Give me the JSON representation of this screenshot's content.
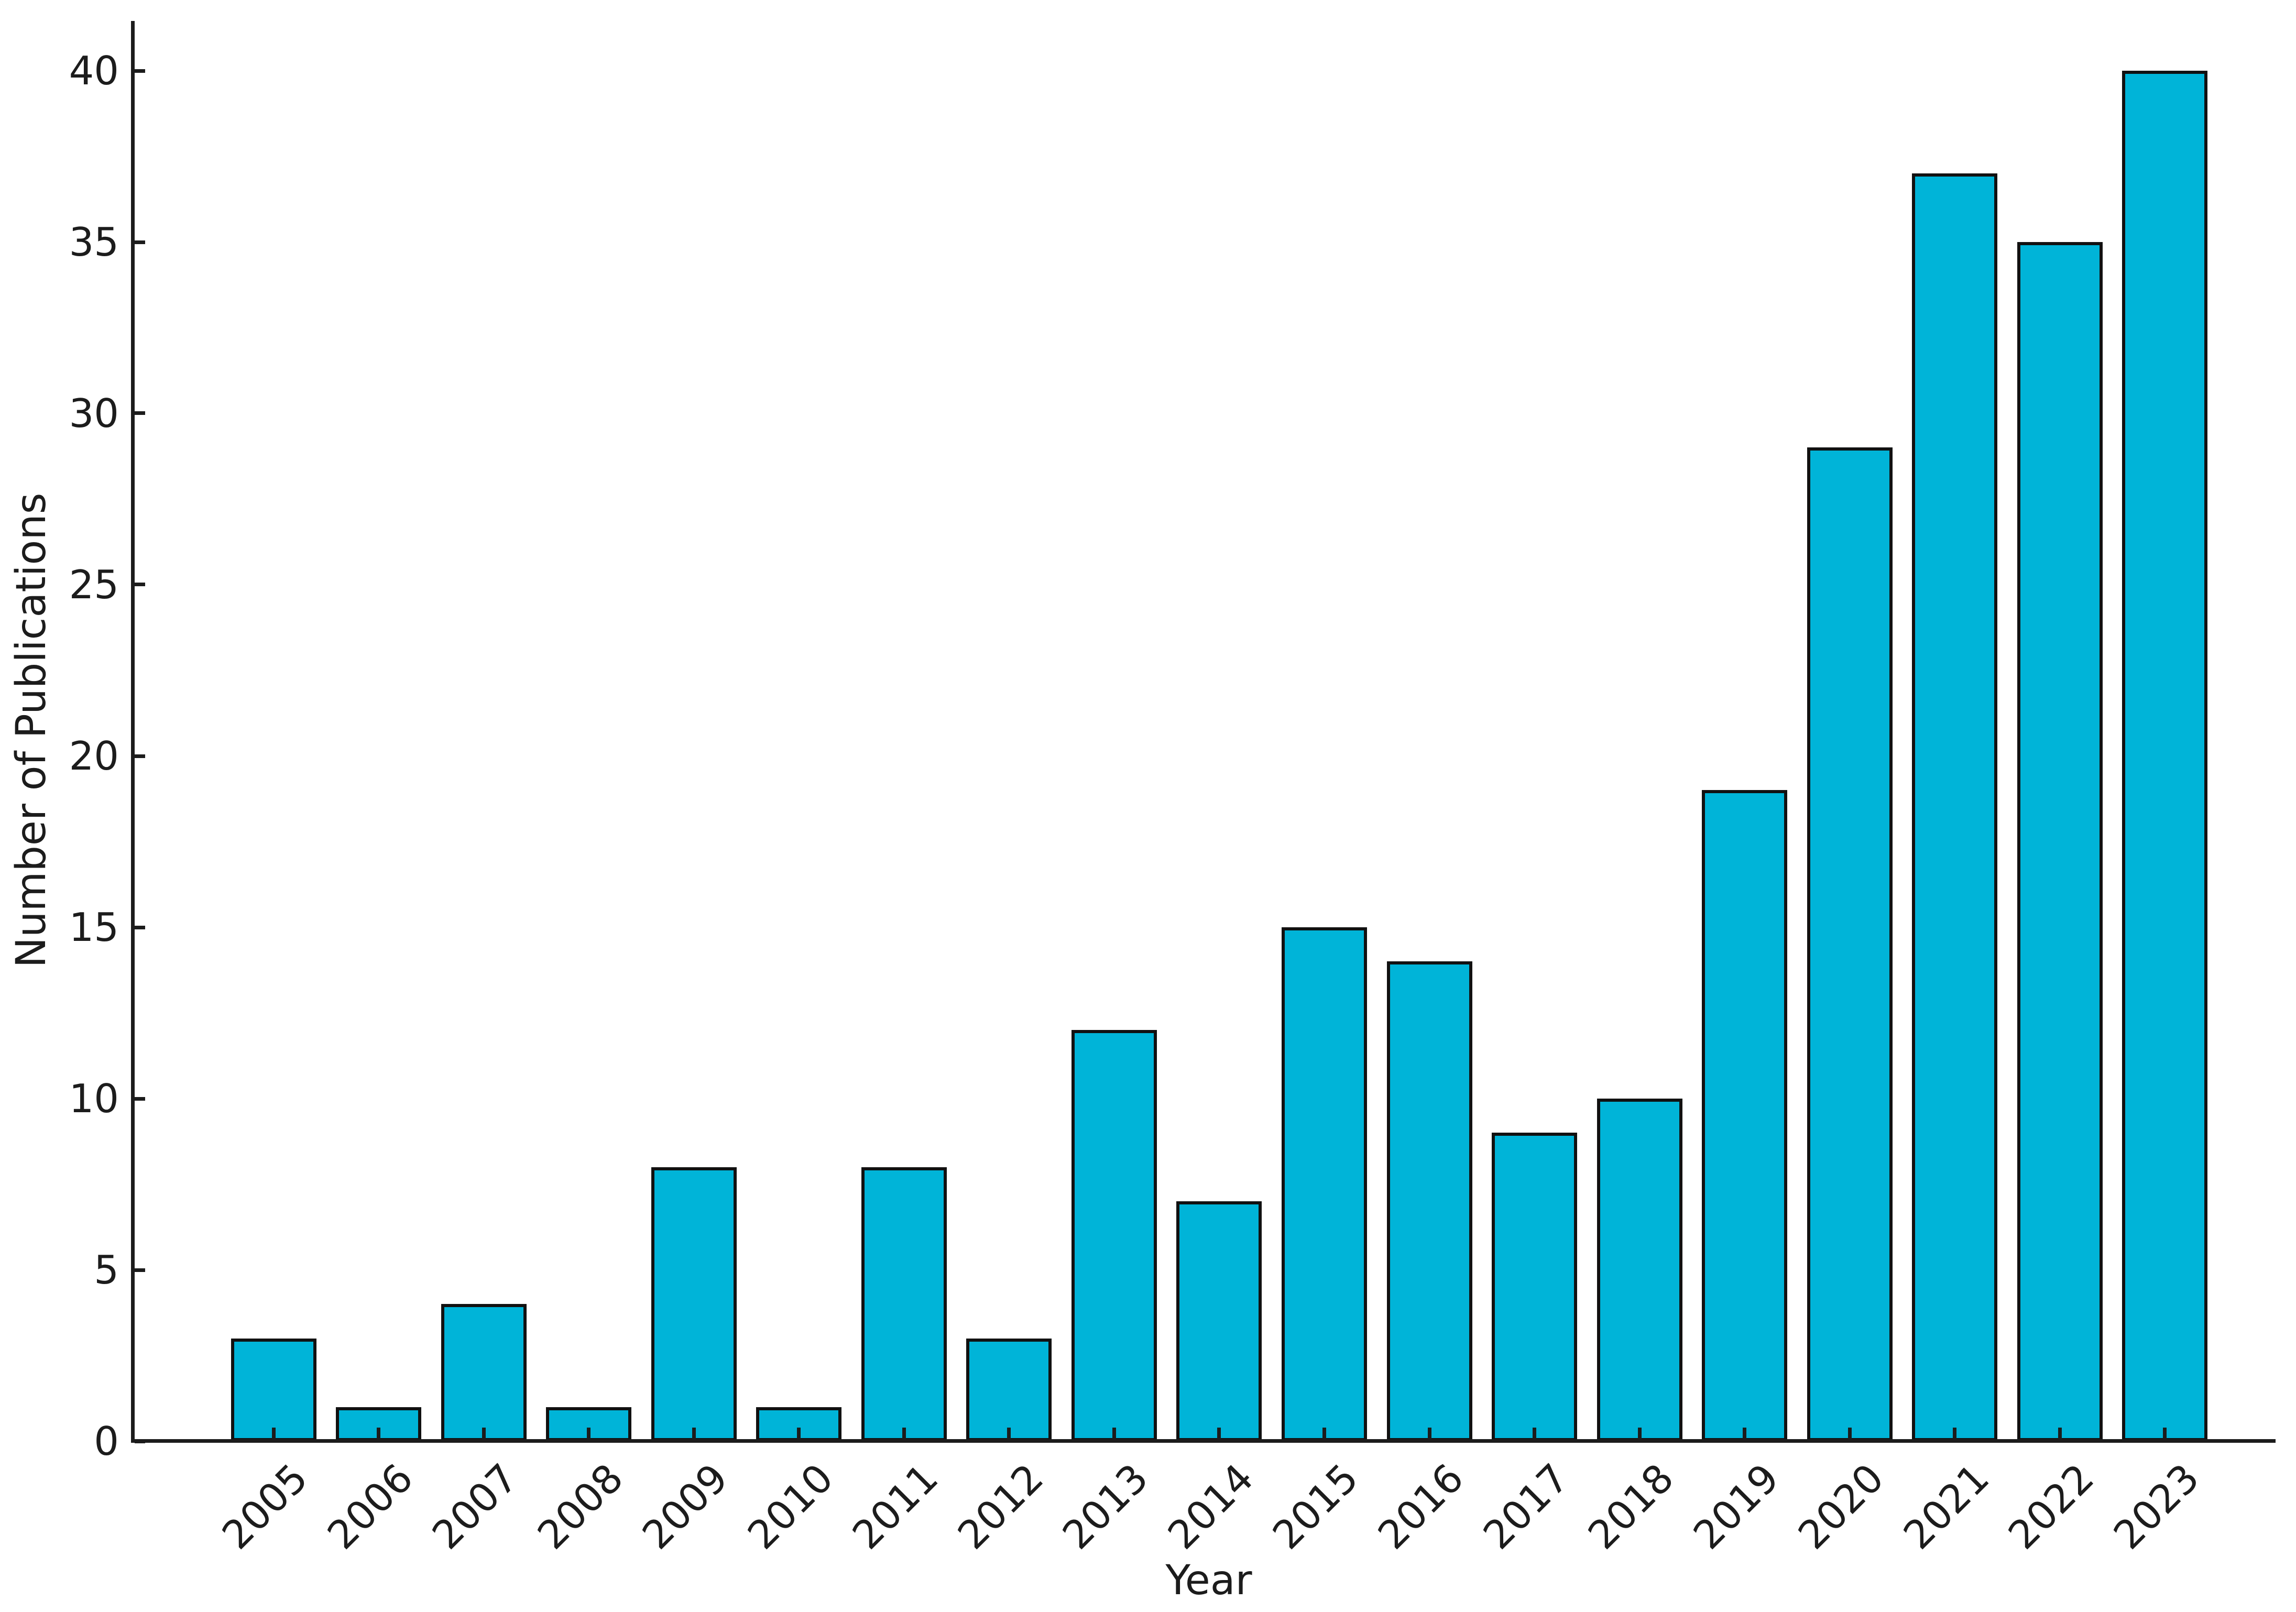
{
  "chart_data": {
    "type": "bar",
    "title": "",
    "xlabel": "Year",
    "ylabel": "Number of Publications",
    "categories": [
      "2005",
      "2006",
      "2007",
      "2008",
      "2009",
      "2010",
      "2011",
      "2012",
      "2013",
      "2014",
      "2015",
      "2016",
      "2017",
      "2018",
      "2019",
      "2020",
      "2021",
      "2022",
      "2023"
    ],
    "values": [
      3,
      1,
      4,
      1,
      8,
      1,
      8,
      3,
      12,
      7,
      15,
      14,
      9,
      10,
      19,
      29,
      37,
      35,
      40
    ],
    "yticks": [
      0,
      5,
      10,
      15,
      20,
      25,
      30,
      35,
      40
    ],
    "ylim": [
      0,
      41.5
    ],
    "grid": false,
    "legend": null,
    "bar_color": "#00b4d8",
    "bar_edge_color": "#111111",
    "axis_color": "#1c1c1c",
    "tick_direction": "in",
    "x_tick_label_rotation_deg": 45
  }
}
